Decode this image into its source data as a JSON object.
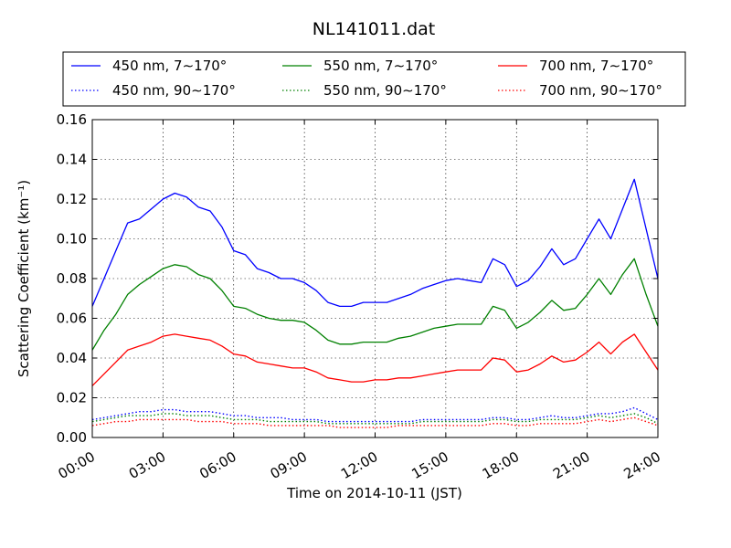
{
  "chart_data": {
    "type": "line",
    "title": "NL141011.dat",
    "xlabel": "Time on 2014-10-11 (JST)",
    "ylabel": "Scattering Coefficient (km⁻¹)",
    "xlim": [
      0,
      24
    ],
    "ylim": [
      0,
      0.16
    ],
    "grid": true,
    "legend_position": "top",
    "x_tick_labels": [
      "00:00",
      "03:00",
      "06:00",
      "09:00",
      "12:00",
      "15:00",
      "18:00",
      "21:00",
      "24:00"
    ],
    "y_tick_labels": [
      "0.00",
      "0.02",
      "0.04",
      "0.06",
      "0.08",
      "0.10",
      "0.12",
      "0.14",
      "0.16"
    ],
    "x": [
      0,
      0.5,
      1,
      1.5,
      2,
      2.5,
      3,
      3.5,
      4,
      4.5,
      5,
      5.5,
      6,
      6.5,
      7,
      7.5,
      8,
      8.5,
      9,
      9.5,
      10,
      10.5,
      11,
      11.5,
      12,
      12.5,
      13,
      13.5,
      14,
      14.5,
      15,
      15.5,
      16,
      16.5,
      17,
      17.5,
      18,
      18.5,
      19,
      19.5,
      20,
      20.5,
      21,
      21.5,
      22,
      22.5,
      23,
      23.5,
      24
    ],
    "series": [
      {
        "name": "450 nm, 7∼170°",
        "color": "#0000ff",
        "style": "solid",
        "values": [
          0.066,
          0.08,
          0.094,
          0.108,
          0.11,
          0.115,
          0.12,
          0.123,
          0.121,
          0.116,
          0.114,
          0.106,
          0.094,
          0.092,
          0.085,
          0.083,
          0.08,
          0.08,
          0.078,
          0.074,
          0.068,
          0.066,
          0.066,
          0.068,
          0.068,
          0.068,
          0.07,
          0.072,
          0.075,
          0.077,
          0.079,
          0.08,
          0.079,
          0.078,
          0.09,
          0.087,
          0.076,
          0.079,
          0.086,
          0.095,
          0.087,
          0.09,
          0.1,
          0.11,
          0.1,
          0.115,
          0.13,
          0.105,
          0.08
        ]
      },
      {
        "name": "550 nm, 7∼170°",
        "color": "#008000",
        "style": "solid",
        "values": [
          0.044,
          0.054,
          0.062,
          0.072,
          0.077,
          0.081,
          0.085,
          0.087,
          0.086,
          0.082,
          0.08,
          0.074,
          0.066,
          0.065,
          0.062,
          0.06,
          0.059,
          0.059,
          0.058,
          0.054,
          0.049,
          0.047,
          0.047,
          0.048,
          0.048,
          0.048,
          0.05,
          0.051,
          0.053,
          0.055,
          0.056,
          0.057,
          0.057,
          0.057,
          0.066,
          0.064,
          0.055,
          0.058,
          0.063,
          0.069,
          0.064,
          0.065,
          0.072,
          0.08,
          0.072,
          0.082,
          0.09,
          0.072,
          0.056
        ]
      },
      {
        "name": "700 nm, 7∼170°",
        "color": "#ff0000",
        "style": "solid",
        "values": [
          0.026,
          0.032,
          0.038,
          0.044,
          0.046,
          0.048,
          0.051,
          0.052,
          0.051,
          0.05,
          0.049,
          0.046,
          0.042,
          0.041,
          0.038,
          0.037,
          0.036,
          0.035,
          0.035,
          0.033,
          0.03,
          0.029,
          0.028,
          0.028,
          0.029,
          0.029,
          0.03,
          0.03,
          0.031,
          0.032,
          0.033,
          0.034,
          0.034,
          0.034,
          0.04,
          0.039,
          0.033,
          0.034,
          0.037,
          0.041,
          0.038,
          0.039,
          0.043,
          0.048,
          0.042,
          0.048,
          0.052,
          0.043,
          0.034
        ]
      },
      {
        "name": "450 nm, 90∼170°",
        "color": "#0000ff",
        "style": "dotted",
        "values": [
          0.009,
          0.01,
          0.011,
          0.012,
          0.013,
          0.013,
          0.014,
          0.014,
          0.013,
          0.013,
          0.013,
          0.012,
          0.011,
          0.011,
          0.01,
          0.01,
          0.01,
          0.009,
          0.009,
          0.009,
          0.008,
          0.008,
          0.008,
          0.008,
          0.008,
          0.008,
          0.008,
          0.008,
          0.009,
          0.009,
          0.009,
          0.009,
          0.009,
          0.009,
          0.01,
          0.01,
          0.009,
          0.009,
          0.01,
          0.011,
          0.01,
          0.01,
          0.011,
          0.012,
          0.012,
          0.013,
          0.015,
          0.012,
          0.009
        ]
      },
      {
        "name": "550 nm, 90∼170°",
        "color": "#008000",
        "style": "dotted",
        "values": [
          0.008,
          0.009,
          0.01,
          0.011,
          0.011,
          0.011,
          0.012,
          0.012,
          0.011,
          0.011,
          0.011,
          0.01,
          0.009,
          0.009,
          0.009,
          0.008,
          0.008,
          0.008,
          0.008,
          0.008,
          0.007,
          0.007,
          0.007,
          0.007,
          0.007,
          0.007,
          0.007,
          0.007,
          0.008,
          0.008,
          0.008,
          0.008,
          0.008,
          0.008,
          0.009,
          0.009,
          0.008,
          0.008,
          0.009,
          0.009,
          0.009,
          0.009,
          0.01,
          0.011,
          0.01,
          0.011,
          0.012,
          0.01,
          0.007
        ]
      },
      {
        "name": "700 nm, 90∼170°",
        "color": "#ff0000",
        "style": "dotted",
        "values": [
          0.006,
          0.007,
          0.008,
          0.008,
          0.009,
          0.009,
          0.009,
          0.009,
          0.009,
          0.008,
          0.008,
          0.008,
          0.007,
          0.007,
          0.007,
          0.006,
          0.006,
          0.006,
          0.006,
          0.006,
          0.006,
          0.005,
          0.005,
          0.005,
          0.005,
          0.005,
          0.006,
          0.006,
          0.006,
          0.006,
          0.006,
          0.006,
          0.006,
          0.006,
          0.007,
          0.007,
          0.006,
          0.006,
          0.007,
          0.007,
          0.007,
          0.007,
          0.008,
          0.009,
          0.008,
          0.009,
          0.01,
          0.008,
          0.006
        ]
      }
    ],
    "legend_order": [
      0,
      3,
      1,
      4,
      2,
      5
    ]
  }
}
